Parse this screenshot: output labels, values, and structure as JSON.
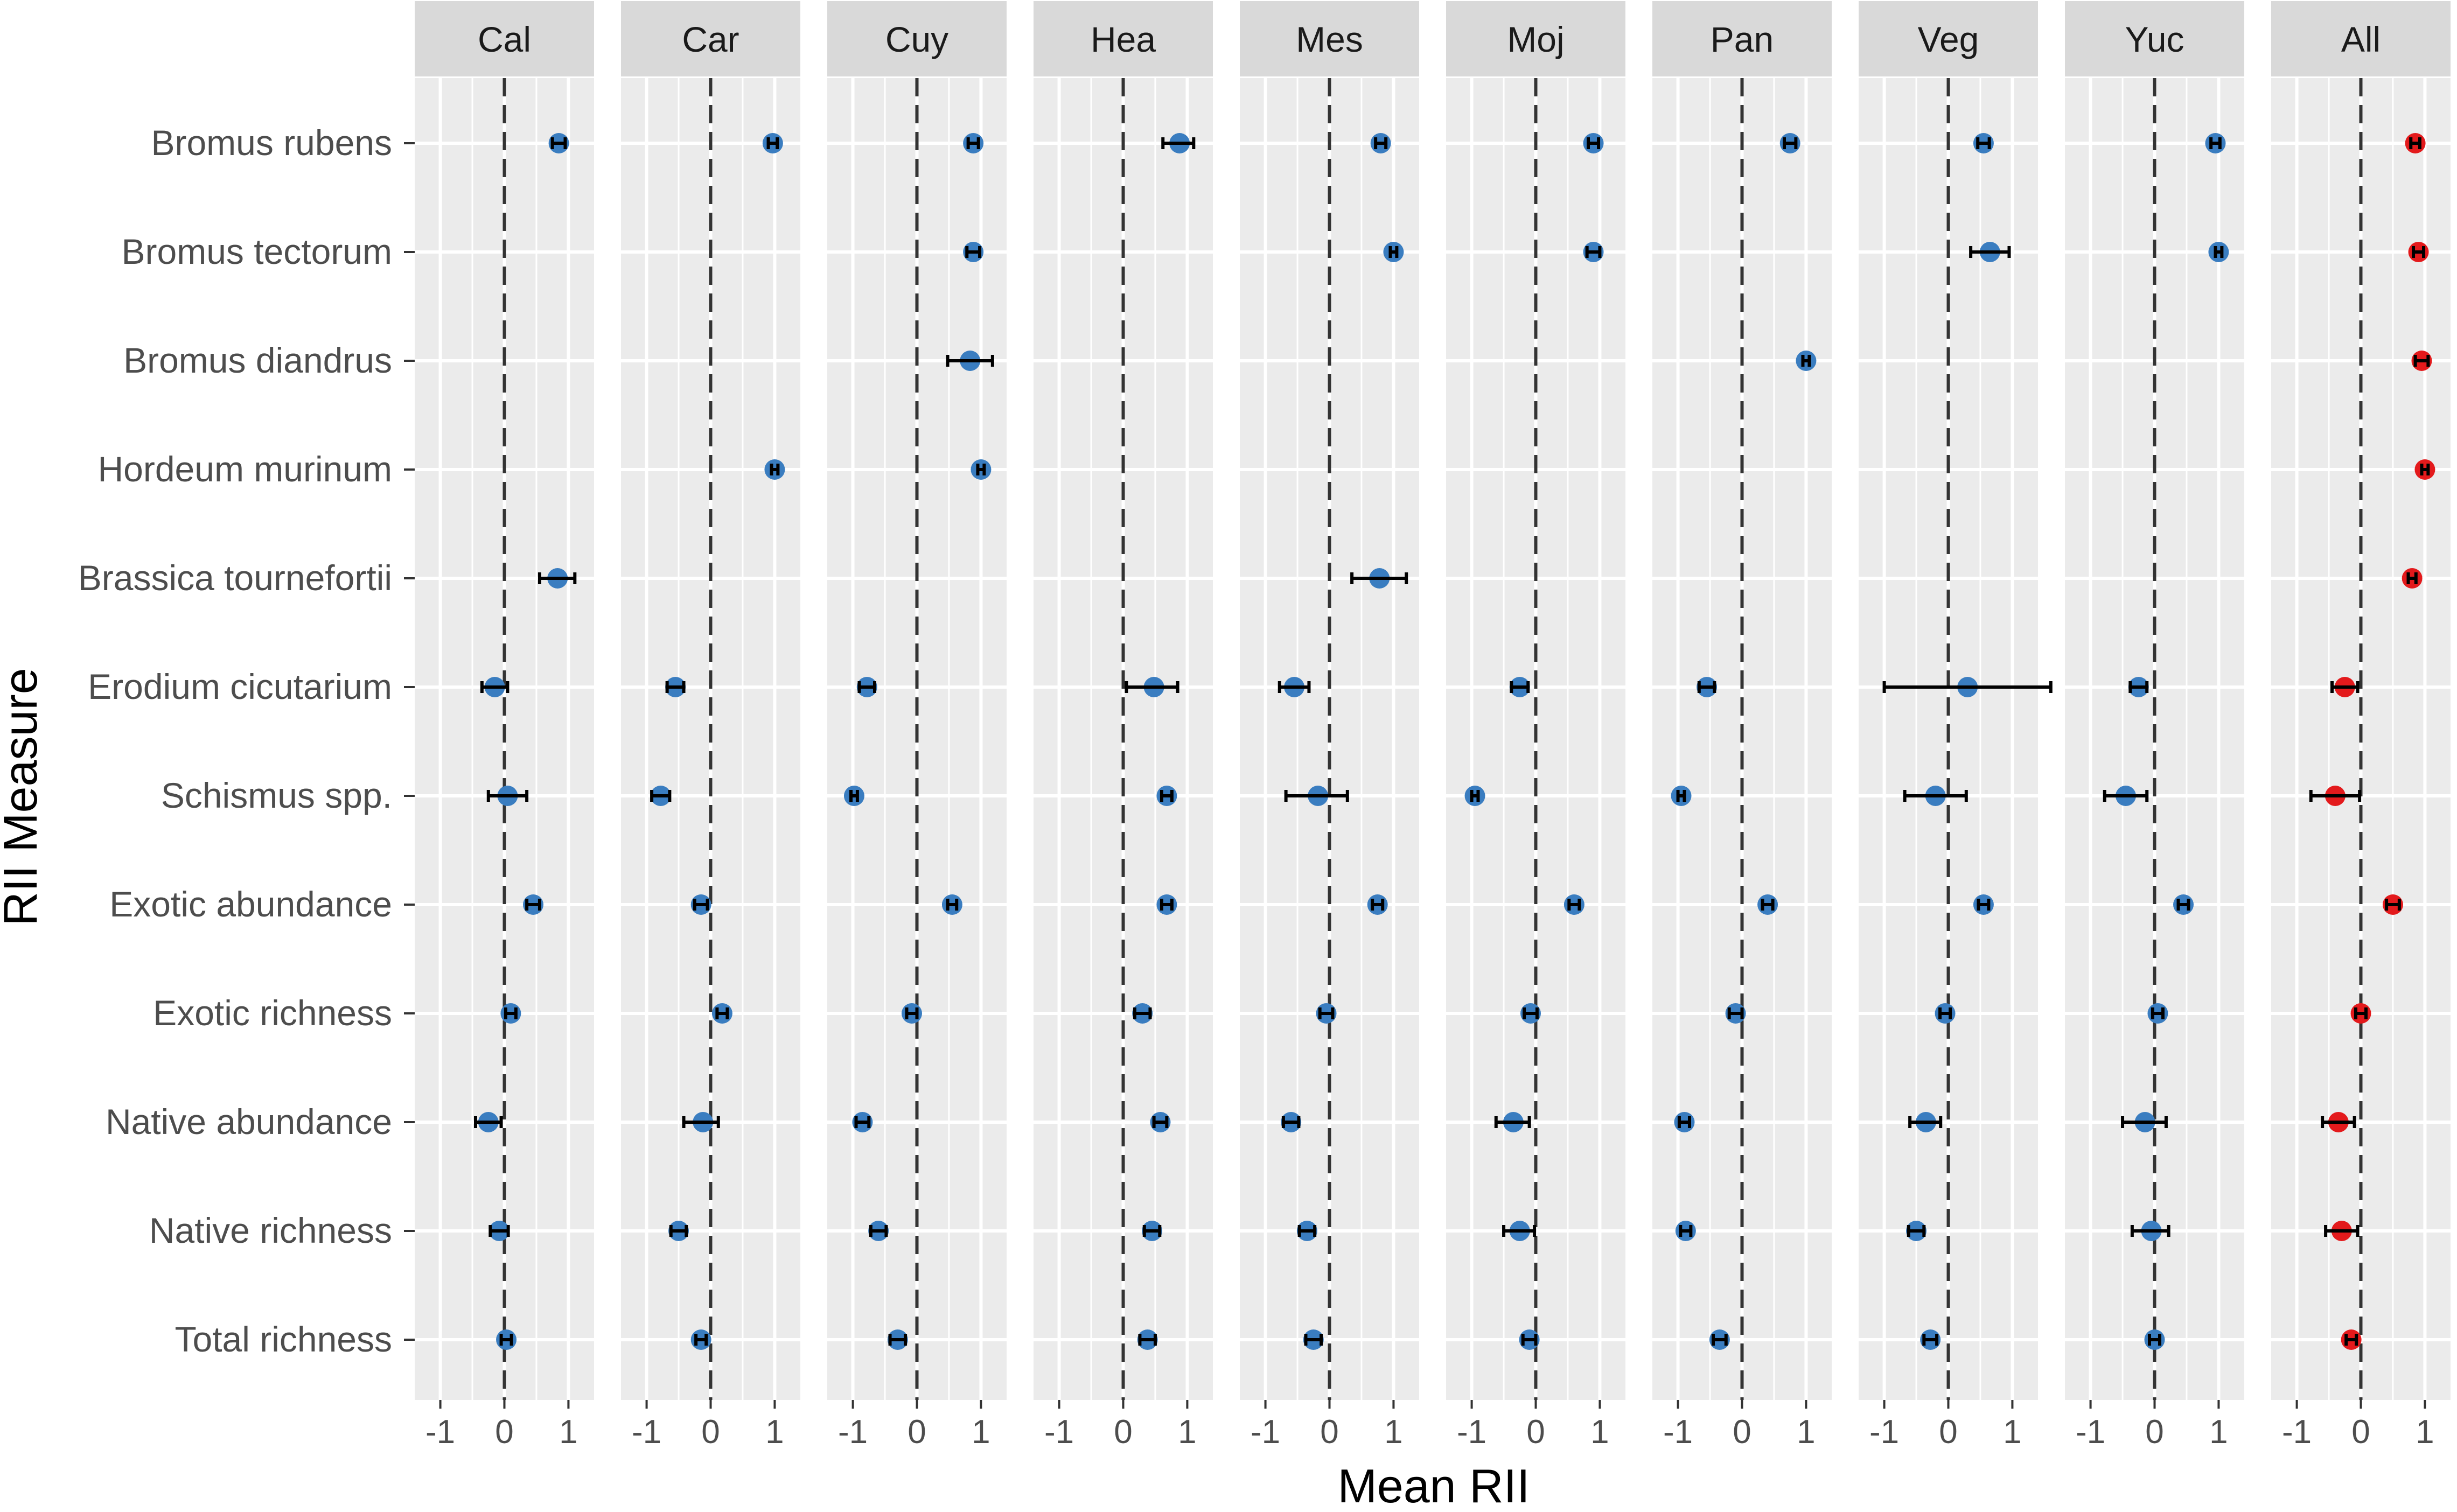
{
  "chart_data": {
    "type": "scatter",
    "xlabel": "Mean RII",
    "ylabel": "RII Measure",
    "xlim": [
      -1.4,
      1.4
    ],
    "x_ticks": [
      -1,
      0,
      1
    ],
    "x_tick_labels": [
      "-1",
      "0",
      "1"
    ],
    "reference_line_x": 0,
    "grid": true,
    "rows": [
      "Bromus rubens",
      "Bromus tectorum",
      "Bromus diandrus",
      "Hordeum murinum",
      "Brassica tournefortii",
      "Erodium cicutarium",
      "Schismus spp.",
      "Exotic abundance",
      "Exotic richness",
      "Native abundance",
      "Native richness",
      "Total richness"
    ],
    "panels": [
      {
        "name": "Cal",
        "color": "#3a7dc0",
        "points": [
          {
            "row": "Bromus rubens",
            "x": 0.85,
            "lo": 0.75,
            "hi": 0.95
          },
          {
            "row": "Brassica tournefortii",
            "x": 0.83,
            "lo": 0.55,
            "hi": 1.1
          },
          {
            "row": "Erodium cicutarium",
            "x": -0.15,
            "lo": -0.35,
            "hi": 0.05
          },
          {
            "row": "Schismus spp.",
            "x": 0.05,
            "lo": -0.25,
            "hi": 0.35
          },
          {
            "row": "Exotic abundance",
            "x": 0.45,
            "lo": 0.35,
            "hi": 0.55
          },
          {
            "row": "Exotic richness",
            "x": 0.1,
            "lo": 0.02,
            "hi": 0.18
          },
          {
            "row": "Native abundance",
            "x": -0.25,
            "lo": -0.45,
            "hi": -0.05
          },
          {
            "row": "Native richness",
            "x": -0.08,
            "lo": -0.22,
            "hi": 0.06
          },
          {
            "row": "Total richness",
            "x": 0.03,
            "lo": -0.05,
            "hi": 0.11
          }
        ]
      },
      {
        "name": "Car",
        "color": "#3a7dc0",
        "points": [
          {
            "row": "Bromus rubens",
            "x": 0.97,
            "lo": 0.9,
            "hi": 1.04
          },
          {
            "row": "Hordeum murinum",
            "x": 1.0,
            "lo": 0.95,
            "hi": 1.05
          },
          {
            "row": "Erodium cicutarium",
            "x": -0.55,
            "lo": -0.68,
            "hi": -0.42
          },
          {
            "row": "Schismus spp.",
            "x": -0.78,
            "lo": -0.92,
            "hi": -0.64
          },
          {
            "row": "Exotic abundance",
            "x": -0.15,
            "lo": -0.25,
            "hi": -0.05
          },
          {
            "row": "Exotic richness",
            "x": 0.18,
            "lo": 0.1,
            "hi": 0.26
          },
          {
            "row": "Native abundance",
            "x": -0.12,
            "lo": -0.42,
            "hi": 0.12
          },
          {
            "row": "Native richness",
            "x": -0.5,
            "lo": -0.62,
            "hi": -0.38
          },
          {
            "row": "Total richness",
            "x": -0.15,
            "lo": -0.23,
            "hi": -0.07
          }
        ]
      },
      {
        "name": "Cuy",
        "color": "#3a7dc0",
        "points": [
          {
            "row": "Bromus rubens",
            "x": 0.88,
            "lo": 0.8,
            "hi": 0.96
          },
          {
            "row": "Bromus tectorum",
            "x": 0.88,
            "lo": 0.78,
            "hi": 0.98
          },
          {
            "row": "Bromus diandrus",
            "x": 0.83,
            "lo": 0.48,
            "hi": 1.18
          },
          {
            "row": "Hordeum murinum",
            "x": 1.0,
            "lo": 0.95,
            "hi": 1.05
          },
          {
            "row": "Erodium cicutarium",
            "x": -0.78,
            "lo": -0.9,
            "hi": -0.66
          },
          {
            "row": "Schismus spp.",
            "x": -0.98,
            "lo": -1.03,
            "hi": -0.93
          },
          {
            "row": "Exotic abundance",
            "x": 0.55,
            "lo": 0.48,
            "hi": 0.62
          },
          {
            "row": "Exotic richness",
            "x": -0.08,
            "lo": -0.16,
            "hi": 0.0
          },
          {
            "row": "Native abundance",
            "x": -0.85,
            "lo": -0.95,
            "hi": -0.75
          },
          {
            "row": "Native richness",
            "x": -0.6,
            "lo": -0.72,
            "hi": -0.48
          },
          {
            "row": "Total richness",
            "x": -0.3,
            "lo": -0.42,
            "hi": -0.18
          }
        ]
      },
      {
        "name": "Hea",
        "color": "#3a7dc0",
        "points": [
          {
            "row": "Bromus rubens",
            "x": 0.88,
            "lo": 0.62,
            "hi": 1.1
          },
          {
            "row": "Erodium cicutarium",
            "x": 0.48,
            "lo": 0.05,
            "hi": 0.85
          },
          {
            "row": "Schismus spp.",
            "x": 0.68,
            "lo": 0.6,
            "hi": 0.76
          },
          {
            "row": "Exotic abundance",
            "x": 0.68,
            "lo": 0.6,
            "hi": 0.76
          },
          {
            "row": "Exotic richness",
            "x": 0.3,
            "lo": 0.18,
            "hi": 0.42
          },
          {
            "row": "Native abundance",
            "x": 0.58,
            "lo": 0.48,
            "hi": 0.68
          },
          {
            "row": "Native richness",
            "x": 0.45,
            "lo": 0.33,
            "hi": 0.57
          },
          {
            "row": "Total richness",
            "x": 0.38,
            "lo": 0.26,
            "hi": 0.5
          }
        ]
      },
      {
        "name": "Mes",
        "color": "#3a7dc0",
        "points": [
          {
            "row": "Bromus rubens",
            "x": 0.8,
            "lo": 0.72,
            "hi": 0.88
          },
          {
            "row": "Bromus tectorum",
            "x": 1.0,
            "lo": 0.95,
            "hi": 1.05
          },
          {
            "row": "Brassica tournefortii",
            "x": 0.78,
            "lo": 0.35,
            "hi": 1.2
          },
          {
            "row": "Erodium cicutarium",
            "x": -0.55,
            "lo": -0.78,
            "hi": -0.32
          },
          {
            "row": "Schismus spp.",
            "x": -0.18,
            "lo": -0.68,
            "hi": 0.28
          },
          {
            "row": "Exotic abundance",
            "x": 0.75,
            "lo": 0.67,
            "hi": 0.83
          },
          {
            "row": "Exotic richness",
            "x": -0.05,
            "lo": -0.15,
            "hi": 0.05
          },
          {
            "row": "Native abundance",
            "x": -0.6,
            "lo": -0.72,
            "hi": -0.48
          },
          {
            "row": "Native richness",
            "x": -0.35,
            "lo": -0.47,
            "hi": -0.23
          },
          {
            "row": "Total richness",
            "x": -0.25,
            "lo": -0.37,
            "hi": -0.13
          }
        ]
      },
      {
        "name": "Moj",
        "color": "#3a7dc0",
        "points": [
          {
            "row": "Bromus rubens",
            "x": 0.9,
            "lo": 0.82,
            "hi": 0.98
          },
          {
            "row": "Bromus tectorum",
            "x": 0.9,
            "lo": 0.8,
            "hi": 1.0
          },
          {
            "row": "Erodium cicutarium",
            "x": -0.25,
            "lo": -0.38,
            "hi": -0.12
          },
          {
            "row": "Schismus spp.",
            "x": -0.95,
            "lo": -1.0,
            "hi": -0.9
          },
          {
            "row": "Exotic abundance",
            "x": 0.6,
            "lo": 0.52,
            "hi": 0.68
          },
          {
            "row": "Exotic richness",
            "x": -0.08,
            "lo": -0.18,
            "hi": 0.02
          },
          {
            "row": "Native abundance",
            "x": -0.35,
            "lo": -0.62,
            "hi": -0.1
          },
          {
            "row": "Native richness",
            "x": -0.25,
            "lo": -0.5,
            "hi": -0.02
          },
          {
            "row": "Total richness",
            "x": -0.1,
            "lo": -0.2,
            "hi": 0.0
          }
        ]
      },
      {
        "name": "Pan",
        "color": "#3a7dc0",
        "points": [
          {
            "row": "Bromus rubens",
            "x": 0.75,
            "lo": 0.66,
            "hi": 0.84
          },
          {
            "row": "Bromus diandrus",
            "x": 1.0,
            "lo": 0.95,
            "hi": 1.05
          },
          {
            "row": "Erodium cicutarium",
            "x": -0.55,
            "lo": -0.67,
            "hi": -0.43
          },
          {
            "row": "Schismus spp.",
            "x": -0.95,
            "lo": -1.0,
            "hi": -0.9
          },
          {
            "row": "Exotic abundance",
            "x": 0.4,
            "lo": 0.32,
            "hi": 0.48
          },
          {
            "row": "Exotic richness",
            "x": -0.1,
            "lo": -0.2,
            "hi": 0.0
          },
          {
            "row": "Native abundance",
            "x": -0.9,
            "lo": -0.98,
            "hi": -0.82
          },
          {
            "row": "Native richness",
            "x": -0.88,
            "lo": -0.96,
            "hi": -0.8
          },
          {
            "row": "Total richness",
            "x": -0.35,
            "lo": -0.45,
            "hi": -0.25
          }
        ]
      },
      {
        "name": "Veg",
        "color": "#3a7dc0",
        "points": [
          {
            "row": "Bromus rubens",
            "x": 0.55,
            "lo": 0.46,
            "hi": 0.64
          },
          {
            "row": "Bromus tectorum",
            "x": 0.65,
            "lo": 0.35,
            "hi": 0.95
          },
          {
            "row": "Erodium cicutarium",
            "x": 0.3,
            "lo": -1.0,
            "hi": 1.6
          },
          {
            "row": "Schismus spp.",
            "x": -0.2,
            "lo": -0.68,
            "hi": 0.28
          },
          {
            "row": "Exotic abundance",
            "x": 0.55,
            "lo": 0.47,
            "hi": 0.63
          },
          {
            "row": "Exotic richness",
            "x": -0.05,
            "lo": -0.13,
            "hi": 0.03
          },
          {
            "row": "Native abundance",
            "x": -0.35,
            "lo": -0.6,
            "hi": -0.12
          },
          {
            "row": "Native richness",
            "x": -0.5,
            "lo": -0.62,
            "hi": -0.38
          },
          {
            "row": "Total richness",
            "x": -0.28,
            "lo": -0.38,
            "hi": -0.18
          }
        ]
      },
      {
        "name": "Yuc",
        "color": "#3a7dc0",
        "points": [
          {
            "row": "Bromus rubens",
            "x": 0.95,
            "lo": 0.88,
            "hi": 1.02
          },
          {
            "row": "Bromus tectorum",
            "x": 1.0,
            "lo": 0.95,
            "hi": 1.05
          },
          {
            "row": "Erodium cicutarium",
            "x": -0.25,
            "lo": -0.38,
            "hi": -0.12
          },
          {
            "row": "Schismus spp.",
            "x": -0.45,
            "lo": -0.78,
            "hi": -0.12
          },
          {
            "row": "Exotic abundance",
            "x": 0.45,
            "lo": 0.37,
            "hi": 0.53
          },
          {
            "row": "Exotic richness",
            "x": 0.05,
            "lo": -0.03,
            "hi": 0.13
          },
          {
            "row": "Native abundance",
            "x": -0.15,
            "lo": -0.5,
            "hi": 0.18
          },
          {
            "row": "Native richness",
            "x": -0.05,
            "lo": -0.35,
            "hi": 0.22
          },
          {
            "row": "Total richness",
            "x": 0.0,
            "lo": -0.08,
            "hi": 0.08
          }
        ]
      },
      {
        "name": "All",
        "color": "#e31a1c",
        "points": [
          {
            "row": "Bromus rubens",
            "x": 0.85,
            "lo": 0.78,
            "hi": 0.92
          },
          {
            "row": "Bromus tectorum",
            "x": 0.9,
            "lo": 0.82,
            "hi": 0.98
          },
          {
            "row": "Bromus diandrus",
            "x": 0.95,
            "lo": 0.85,
            "hi": 1.05
          },
          {
            "row": "Hordeum murinum",
            "x": 1.0,
            "lo": 0.95,
            "hi": 1.05
          },
          {
            "row": "Brassica tournefortii",
            "x": 0.8,
            "lo": 0.74,
            "hi": 0.86
          },
          {
            "row": "Erodium cicutarium",
            "x": -0.25,
            "lo": -0.45,
            "hi": -0.05
          },
          {
            "row": "Schismus spp.",
            "x": -0.4,
            "lo": -0.78,
            "hi": -0.02
          },
          {
            "row": "Exotic abundance",
            "x": 0.5,
            "lo": 0.4,
            "hi": 0.6
          },
          {
            "row": "Exotic richness",
            "x": 0.0,
            "lo": -0.08,
            "hi": 0.08
          },
          {
            "row": "Native abundance",
            "x": -0.35,
            "lo": -0.6,
            "hi": -0.1
          },
          {
            "row": "Native richness",
            "x": -0.3,
            "lo": -0.55,
            "hi": -0.05
          },
          {
            "row": "Total richness",
            "x": -0.15,
            "lo": -0.23,
            "hi": -0.07
          }
        ]
      }
    ]
  }
}
